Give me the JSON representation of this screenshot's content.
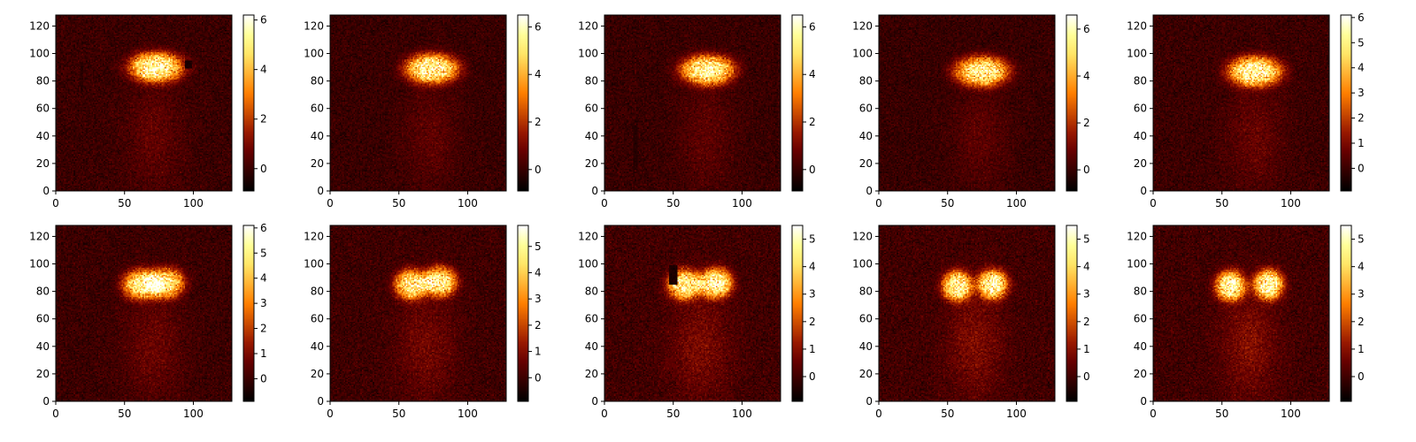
{
  "figure": {
    "rows": 2,
    "cols": 5
  },
  "colormap": {
    "name": "afmhot",
    "stops": [
      "#000000",
      "#330000",
      "#660000",
      "#991900",
      "#cc4c00",
      "#ff7f00",
      "#ffb233",
      "#ffe566",
      "#ffff99",
      "#ffffff"
    ]
  },
  "chart_data": [
    {
      "type": "heatmap",
      "title": "",
      "xlabel": "",
      "ylabel": "",
      "xlim": [
        0,
        128
      ],
      "ylim": [
        0,
        128
      ],
      "xticks": [
        "0",
        "50",
        "100"
      ],
      "yticks": [
        "0",
        "20",
        "40",
        "60",
        "80",
        "100",
        "120"
      ],
      "colorbar": {
        "min": -0.9,
        "max": 6.2,
        "ticks": [
          "0",
          "2",
          "4",
          "6"
        ],
        "tick_values": [
          0,
          2,
          4,
          6
        ]
      },
      "blobs": [
        {
          "x": 73,
          "y": 90,
          "sx": 16,
          "sy": 9,
          "amp": 5.4
        }
      ],
      "tail": {
        "x": 72,
        "y": 40,
        "sx": 14,
        "sy": 28,
        "amp": 0.6
      },
      "artifacts": [
        {
          "x0": 94,
          "x1": 99,
          "y0": 89,
          "y1": 95,
          "value": -0.5
        },
        {
          "x0": 18,
          "x1": 20,
          "y0": 72,
          "y1": 94,
          "value": -0.3
        }
      ]
    },
    {
      "type": "heatmap",
      "title": "",
      "xlabel": "",
      "ylabel": "",
      "xlim": [
        0,
        128
      ],
      "ylim": [
        0,
        128
      ],
      "xticks": [
        "0",
        "50",
        "100"
      ],
      "yticks": [
        "0",
        "20",
        "40",
        "60",
        "80",
        "100",
        "120"
      ],
      "colorbar": {
        "min": -0.9,
        "max": 6.5,
        "ticks": [
          "0",
          "2",
          "4",
          "6"
        ],
        "tick_values": [
          0,
          2,
          4,
          6
        ]
      },
      "blobs": [
        {
          "x": 74,
          "y": 89,
          "sx": 16,
          "sy": 9,
          "amp": 5.5
        }
      ],
      "tail": {
        "x": 73,
        "y": 40,
        "sx": 14,
        "sy": 28,
        "amp": 0.6
      },
      "artifacts": []
    },
    {
      "type": "heatmap",
      "title": "",
      "xlabel": "",
      "ylabel": "",
      "xlim": [
        0,
        128
      ],
      "ylim": [
        0,
        128
      ],
      "xticks": [
        "0",
        "50",
        "100"
      ],
      "yticks": [
        "0",
        "20",
        "40",
        "60",
        "80",
        "100",
        "120"
      ],
      "colorbar": {
        "min": -0.9,
        "max": 6.5,
        "ticks": [
          "0",
          "2",
          "4",
          "6"
        ],
        "tick_values": [
          0,
          2,
          4,
          6
        ]
      },
      "blobs": [
        {
          "x": 75,
          "y": 88,
          "sx": 16,
          "sy": 9,
          "amp": 5.5
        }
      ],
      "tail": {
        "x": 74,
        "y": 40,
        "sx": 14,
        "sy": 28,
        "amp": 0.6
      },
      "artifacts": [
        {
          "x0": 21,
          "x1": 24,
          "y0": 15,
          "y1": 48,
          "value": -0.3
        }
      ]
    },
    {
      "type": "heatmap",
      "title": "",
      "xlabel": "",
      "ylabel": "",
      "xlim": [
        0,
        128
      ],
      "ylim": [
        0,
        128
      ],
      "xticks": [
        "0",
        "50",
        "100"
      ],
      "yticks": [
        "0",
        "20",
        "40",
        "60",
        "80",
        "100",
        "120"
      ],
      "colorbar": {
        "min": -0.9,
        "max": 6.6,
        "ticks": [
          "0",
          "2",
          "4",
          "6"
        ],
        "tick_values": [
          0,
          2,
          4,
          6
        ]
      },
      "blobs": [
        {
          "x": 75,
          "y": 87,
          "sx": 16,
          "sy": 9,
          "amp": 5.4
        }
      ],
      "tail": {
        "x": 74,
        "y": 40,
        "sx": 14,
        "sy": 28,
        "amp": 0.6
      },
      "artifacts": []
    },
    {
      "type": "heatmap",
      "title": "",
      "xlabel": "",
      "ylabel": "",
      "xlim": [
        0,
        128
      ],
      "ylim": [
        0,
        128
      ],
      "xticks": [
        "0",
        "50",
        "100"
      ],
      "yticks": [
        "0",
        "20",
        "40",
        "60",
        "80",
        "100",
        "120"
      ],
      "colorbar": {
        "min": -0.9,
        "max": 6.1,
        "ticks": [
          "0",
          "1",
          "2",
          "3",
          "4",
          "5",
          "6"
        ],
        "tick_values": [
          0,
          1,
          2,
          3,
          4,
          5,
          6
        ]
      },
      "blobs": [
        {
          "x": 74,
          "y": 87,
          "sx": 16,
          "sy": 9,
          "amp": 5.3
        }
      ],
      "tail": {
        "x": 74,
        "y": 40,
        "sx": 14,
        "sy": 28,
        "amp": 0.65
      },
      "artifacts": []
    },
    {
      "type": "heatmap",
      "title": "",
      "xlabel": "",
      "ylabel": "",
      "xlim": [
        0,
        128
      ],
      "ylim": [
        0,
        128
      ],
      "xticks": [
        "0",
        "50",
        "100"
      ],
      "yticks": [
        "0",
        "20",
        "40",
        "60",
        "80",
        "100",
        "120"
      ],
      "colorbar": {
        "min": -0.9,
        "max": 6.1,
        "ticks": [
          "0",
          "1",
          "2",
          "3",
          "4",
          "5",
          "6"
        ],
        "tick_values": [
          0,
          1,
          2,
          3,
          4,
          5,
          6
        ]
      },
      "blobs": [
        {
          "x": 62,
          "y": 85,
          "sx": 11,
          "sy": 9,
          "amp": 4.6
        },
        {
          "x": 80,
          "y": 86,
          "sx": 11,
          "sy": 9,
          "amp": 4.6
        }
      ],
      "tail": {
        "x": 71,
        "y": 40,
        "sx": 15,
        "sy": 28,
        "amp": 0.7
      },
      "artifacts": []
    },
    {
      "type": "heatmap",
      "title": "",
      "xlabel": "",
      "ylabel": "",
      "xlim": [
        0,
        128
      ],
      "ylim": [
        0,
        128
      ],
      "xticks": [
        "0",
        "50",
        "100"
      ],
      "yticks": [
        "0",
        "20",
        "40",
        "60",
        "80",
        "100",
        "120"
      ],
      "colorbar": {
        "min": -0.9,
        "max": 5.8,
        "ticks": [
          "0",
          "1",
          "2",
          "3",
          "4",
          "5"
        ],
        "tick_values": [
          0,
          1,
          2,
          3,
          4,
          5
        ]
      },
      "blobs": [
        {
          "x": 59,
          "y": 85,
          "sx": 10,
          "sy": 9,
          "amp": 4.5
        },
        {
          "x": 80,
          "y": 87,
          "sx": 10,
          "sy": 9,
          "amp": 4.6
        }
      ],
      "tail": {
        "x": 70,
        "y": 40,
        "sx": 15,
        "sy": 28,
        "amp": 0.75
      },
      "artifacts": []
    },
    {
      "type": "heatmap",
      "title": "",
      "xlabel": "",
      "ylabel": "",
      "xlim": [
        0,
        128
      ],
      "ylim": [
        0,
        128
      ],
      "xticks": [
        "0",
        "50",
        "100"
      ],
      "yticks": [
        "0",
        "20",
        "40",
        "60",
        "80",
        "100",
        "120"
      ],
      "colorbar": {
        "min": -0.9,
        "max": 5.5,
        "ticks": [
          "0",
          "1",
          "2",
          "3",
          "4",
          "5"
        ],
        "tick_values": [
          0,
          1,
          2,
          3,
          4,
          5
        ]
      },
      "blobs": [
        {
          "x": 58,
          "y": 85,
          "sx": 10,
          "sy": 9,
          "amp": 4.5
        },
        {
          "x": 81,
          "y": 86,
          "sx": 10,
          "sy": 9,
          "amp": 4.6
        }
      ],
      "tail": {
        "x": 70,
        "y": 40,
        "sx": 15,
        "sy": 28,
        "amp": 0.8
      },
      "artifacts": [
        {
          "x0": 47,
          "x1": 53,
          "y0": 85,
          "y1": 99,
          "value": -0.5
        },
        {
          "x0": 44,
          "x1": 50,
          "y0": 24,
          "y1": 32,
          "value": 0.4
        }
      ]
    },
    {
      "type": "heatmap",
      "title": "",
      "xlabel": "",
      "ylabel": "",
      "xlim": [
        0,
        128
      ],
      "ylim": [
        0,
        128
      ],
      "xticks": [
        "0",
        "50",
        "100"
      ],
      "yticks": [
        "0",
        "20",
        "40",
        "60",
        "80",
        "100",
        "120"
      ],
      "colorbar": {
        "min": -0.9,
        "max": 5.5,
        "ticks": [
          "0",
          "1",
          "2",
          "3",
          "4",
          "5"
        ],
        "tick_values": [
          0,
          1,
          2,
          3,
          4,
          5
        ]
      },
      "blobs": [
        {
          "x": 57,
          "y": 84,
          "sx": 9,
          "sy": 9,
          "amp": 4.7
        },
        {
          "x": 83,
          "y": 85,
          "sx": 9,
          "sy": 9,
          "amp": 4.7
        }
      ],
      "tail": {
        "x": 70,
        "y": 42,
        "sx": 14,
        "sy": 28,
        "amp": 0.85
      },
      "artifacts": []
    },
    {
      "type": "heatmap",
      "title": "",
      "xlabel": "",
      "ylabel": "",
      "xlim": [
        0,
        128
      ],
      "ylim": [
        0,
        128
      ],
      "xticks": [
        "0",
        "50",
        "100"
      ],
      "yticks": [
        "0",
        "20",
        "40",
        "60",
        "80",
        "100",
        "120"
      ],
      "colorbar": {
        "min": -0.9,
        "max": 5.5,
        "ticks": [
          "0",
          "1",
          "2",
          "3",
          "4",
          "5"
        ],
        "tick_values": [
          0,
          1,
          2,
          3,
          4,
          5
        ]
      },
      "blobs": [
        {
          "x": 56,
          "y": 84,
          "sx": 9,
          "sy": 9,
          "amp": 4.7
        },
        {
          "x": 84,
          "y": 85,
          "sx": 9,
          "sy": 9,
          "amp": 4.7
        }
      ],
      "tail": {
        "x": 70,
        "y": 42,
        "sx": 14,
        "sy": 28,
        "amp": 0.9
      },
      "artifacts": []
    }
  ]
}
